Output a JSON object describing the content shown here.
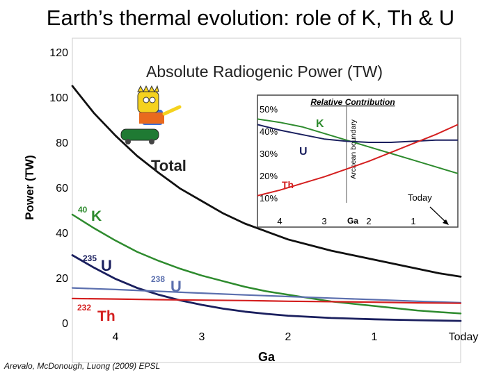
{
  "slide": {
    "title": "Earth’s thermal evolution: role of K, Th & U",
    "citation": "Arevalo, McDonough, Luong (2009) EPSL"
  },
  "colors": {
    "total": "#111111",
    "k": "#2e8b2e",
    "u": "#1a1f5e",
    "th": "#d42020",
    "u238": "#5b6fae",
    "frame": "#cccccc",
    "inset_frame": "#444444"
  },
  "chart_data": [
    {
      "type": "line",
      "title": "Absolute Radiogenic Power (TW)",
      "ylabel": "Power (TW)",
      "xlabel": "Ga",
      "x_ticks": [
        {
          "value": 4,
          "label": "4"
        },
        {
          "value": 3,
          "label": "3"
        },
        {
          "value": 2,
          "label": "2"
        },
        {
          "value": 1,
          "label": "1"
        },
        {
          "value": 0,
          "label": "Today"
        }
      ],
      "y_ticks": [
        0,
        20,
        40,
        60,
        80,
        100,
        120
      ],
      "xlim": [
        4.5,
        0
      ],
      "ylim": [
        0,
        120
      ],
      "series": [
        {
          "name": "Total",
          "color": "#111111",
          "x": [
            4.5,
            4.25,
            4.0,
            3.75,
            3.5,
            3.25,
            3.0,
            2.75,
            2.5,
            2.25,
            2.0,
            1.75,
            1.5,
            1.25,
            1.0,
            0.75,
            0.5,
            0.25,
            0.0
          ],
          "y": [
            105,
            93,
            83,
            74,
            66.5,
            59.5,
            54,
            48.5,
            44,
            40.5,
            37,
            34.5,
            32,
            30,
            28,
            26,
            24,
            22,
            20.5
          ]
        },
        {
          "name": "40K",
          "color": "#2e8b2e",
          "x": [
            4.5,
            4.25,
            4.0,
            3.75,
            3.5,
            3.25,
            3.0,
            2.75,
            2.5,
            2.25,
            2.0,
            1.75,
            1.5,
            1.25,
            1.0,
            0.75,
            0.5,
            0.25,
            0.0
          ],
          "y": [
            48,
            42,
            36.5,
            31.5,
            27.5,
            24,
            21,
            18.5,
            16,
            14,
            12.5,
            11,
            9.5,
            8.5,
            7.5,
            6.5,
            5.5,
            4.8,
            4.2
          ]
        },
        {
          "name": "235U",
          "color": "#1a1f5e",
          "x": [
            4.5,
            4.25,
            4.0,
            3.75,
            3.5,
            3.25,
            3.0,
            2.75,
            2.5,
            2.25,
            2.0,
            1.5,
            1.0,
            0.5,
            0.0
          ],
          "y": [
            30,
            24.5,
            19.5,
            15.5,
            12.5,
            10,
            8,
            6.3,
            5,
            4,
            3.2,
            2.2,
            1.6,
            1.2,
            0.9
          ]
        },
        {
          "name": "238U",
          "color": "#5b6fae",
          "x": [
            4.5,
            4.0,
            3.5,
            3.0,
            2.5,
            2.0,
            1.5,
            1.0,
            0.5,
            0.0
          ],
          "y": [
            15.5,
            14.8,
            14,
            13.2,
            12.4,
            11.7,
            11.0,
            10.3,
            9.6,
            9.0
          ]
        },
        {
          "name": "232Th",
          "color": "#d42020",
          "x": [
            4.5,
            4.0,
            3.5,
            3.0,
            2.5,
            2.0,
            1.5,
            1.0,
            0.5,
            0.0
          ],
          "y": [
            10.8,
            10.6,
            10.3,
            10.1,
            9.9,
            9.6,
            9.4,
            9.2,
            8.9,
            8.7
          ]
        }
      ],
      "annotations": {
        "total_label": "Total",
        "k_mass": "40",
        "k_symbol": "K",
        "u235_mass": "235",
        "u235_symbol": "U",
        "u238_mass": "238",
        "u238_symbol": "U",
        "th_mass": "232",
        "th_symbol": "Th"
      },
      "grid": false,
      "legend": "inline labels"
    },
    {
      "type": "line",
      "title": "Relative Contribution",
      "xlabel": "Ga",
      "x_ticks": [
        "4",
        "3",
        "2",
        "1"
      ],
      "y_ticks": [
        "10%",
        "20%",
        "30%",
        "40%",
        "50%"
      ],
      "xlim": [
        4.5,
        0
      ],
      "ylim": [
        5,
        55
      ],
      "series": [
        {
          "name": "K",
          "color": "#2e8b2e",
          "x": [
            4.5,
            4.0,
            3.5,
            3.0,
            2.5,
            2.0,
            1.5,
            1.0,
            0.5,
            0.0
          ],
          "y": [
            45.5,
            44,
            42,
            39,
            36,
            33,
            30,
            27,
            24,
            21
          ]
        },
        {
          "name": "U",
          "color": "#1a1f5e",
          "x": [
            4.5,
            4.0,
            3.5,
            3.0,
            2.5,
            2.0,
            1.5,
            1.0,
            0.5,
            0.0
          ],
          "y": [
            43,
            40.5,
            38.5,
            36.5,
            35.5,
            35,
            35,
            35.5,
            36,
            36
          ]
        },
        {
          "name": "Th",
          "color": "#d42020",
          "x": [
            4.5,
            4.0,
            3.5,
            3.0,
            2.5,
            2.0,
            1.5,
            1.0,
            0.5,
            0.0
          ],
          "y": [
            11,
            13.5,
            16.5,
            19.5,
            23,
            26.5,
            30.5,
            34.5,
            38.5,
            43
          ]
        }
      ],
      "annotations": {
        "archean_boundary_label": "Archean boundary",
        "archean_boundary_ga": 2.5,
        "today_label": "Today"
      },
      "grid": false,
      "legend": "inline labels"
    }
  ]
}
